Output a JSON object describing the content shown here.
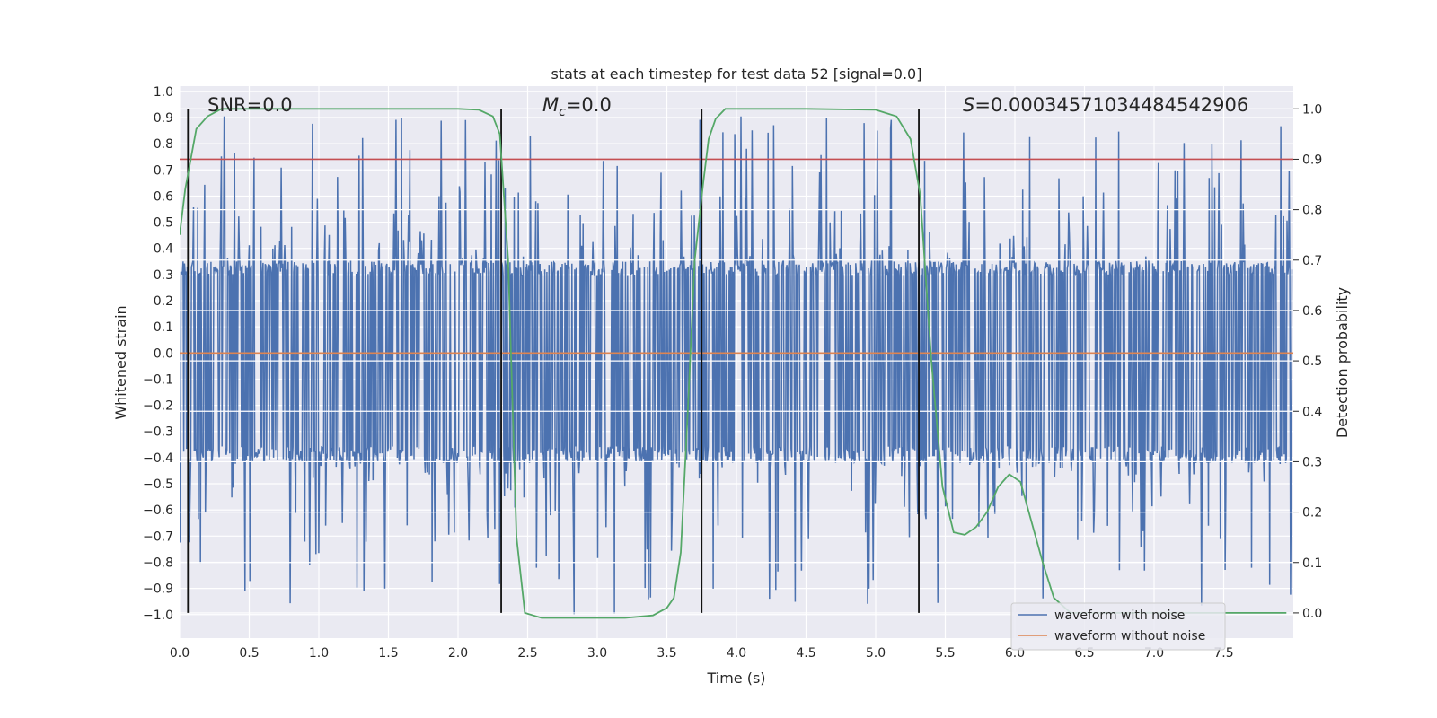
{
  "chart_data": {
    "type": "line",
    "title": "stats at each timestep for test data 52 [signal=0.0]",
    "xlabel": "Time (s)",
    "ylabel": "Whitened strain",
    "y2label": "Detection probability",
    "xlim": [
      0.0,
      8.0
    ],
    "ylim": [
      -1.09,
      1.02
    ],
    "y2lim": [
      -0.05,
      1.045
    ],
    "xticks": [
      "0.0",
      "0.5",
      "1.0",
      "1.5",
      "2.0",
      "2.5",
      "3.0",
      "3.5",
      "4.0",
      "4.5",
      "5.0",
      "5.5",
      "6.0",
      "6.5",
      "7.0",
      "7.5"
    ],
    "yticks": [
      "1.0",
      "0.9",
      "0.8",
      "0.7",
      "0.6",
      "0.5",
      "0.4",
      "0.3",
      "0.2",
      "0.1",
      "0.0",
      "−0.1",
      "−0.2",
      "−0.3",
      "−0.4",
      "−0.5",
      "−0.6",
      "−0.7",
      "−0.8",
      "−0.9",
      "−1.0"
    ],
    "y2ticks": [
      "1.0",
      "0.9",
      "0.8",
      "0.7",
      "0.6",
      "0.5",
      "0.4",
      "0.3",
      "0.2",
      "0.1",
      "0.0"
    ],
    "grid": true,
    "legend_position": "lower-right",
    "annotations": {
      "snr": "SNR=0.0",
      "mc_symbol": "M",
      "mc_subscript": "c",
      "mc_value": "=0.0",
      "s_symbol": "S",
      "s_value": "=0.00034571034484542906"
    },
    "series": [
      {
        "name": "waveform with noise",
        "color": "#4c72b0",
        "envelope": {
          "typical_max": 0.35,
          "typical_min": -0.42,
          "peak_max": 0.92,
          "peak_min": -1.0
        }
      },
      {
        "name": "waveform without noise",
        "color": "#dd8452",
        "constant": 0.0
      }
    ],
    "threshold": {
      "value": 0.9,
      "axis": "y2",
      "color": "#c44e52"
    },
    "detection_probability": {
      "color": "#55a868",
      "x": [
        0.0,
        0.04,
        0.08,
        0.12,
        0.2,
        0.3,
        0.5,
        1.0,
        1.5,
        2.0,
        2.15,
        2.25,
        2.3,
        2.36,
        2.42,
        2.48,
        2.54,
        2.6,
        2.8,
        3.2,
        3.4,
        3.5,
        3.55,
        3.6,
        3.65,
        3.7,
        3.76,
        3.8,
        3.85,
        3.92,
        4.0,
        4.5,
        5.0,
        5.15,
        5.25,
        5.32,
        5.4,
        5.48,
        5.56,
        5.64,
        5.72,
        5.8,
        5.88,
        5.96,
        6.04,
        6.12,
        6.2,
        6.28,
        6.4,
        6.8,
        7.2,
        7.6,
        7.95
      ],
      "y": [
        0.75,
        0.84,
        0.9,
        0.96,
        0.985,
        1.0,
        1.0,
        1.0,
        1.0,
        1.0,
        0.998,
        0.985,
        0.95,
        0.7,
        0.15,
        0.0,
        -0.005,
        -0.01,
        -0.01,
        -0.01,
        -0.005,
        0.01,
        0.03,
        0.12,
        0.4,
        0.7,
        0.85,
        0.94,
        0.98,
        1.0,
        1.0,
        1.0,
        0.998,
        0.985,
        0.94,
        0.83,
        0.5,
        0.25,
        0.16,
        0.155,
        0.17,
        0.2,
        0.25,
        0.275,
        0.26,
        0.18,
        0.1,
        0.03,
        0.0,
        0.0,
        0.0,
        0.0,
        0.0
      ]
    },
    "event_markers_x": [
      0.06,
      2.31,
      3.75,
      5.31
    ]
  }
}
